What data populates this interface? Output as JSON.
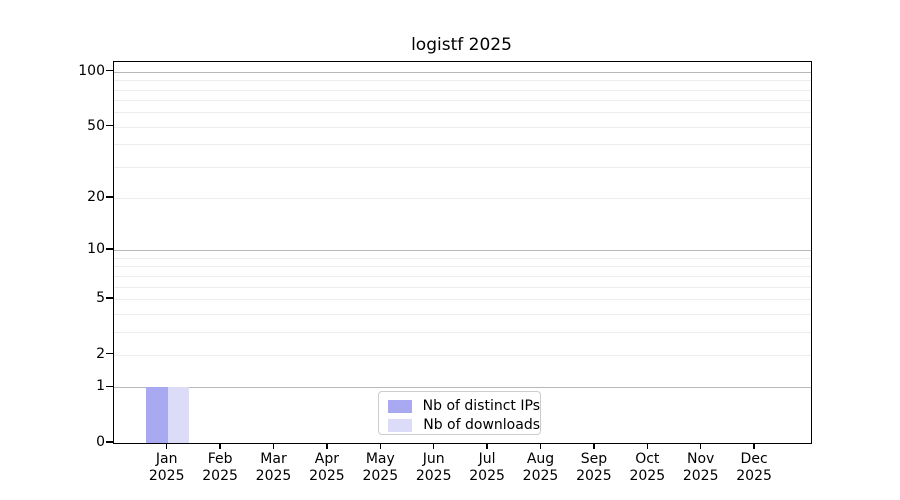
{
  "title": "logistf 2025",
  "colors": {
    "distinct_ips_bar": "#a9a9f2",
    "downloads_bar": "#dcdcf8",
    "grid_major": "#b8b8b8",
    "grid_minor": "#ececec",
    "spine": "#000000",
    "legend_border": "#cccccc",
    "background": "#ffffff"
  },
  "legend": {
    "items": [
      {
        "label": "Nb of distinct IPs",
        "color_key": "distinct_ips_bar"
      },
      {
        "label": "Nb of downloads",
        "color_key": "downloads_bar"
      }
    ]
  },
  "chart_data": {
    "type": "bar",
    "title": "logistf 2025",
    "categories": [
      "Jan 2025",
      "Feb 2025",
      "Mar 2025",
      "Apr 2025",
      "May 2025",
      "Jun 2025",
      "Jul 2025",
      "Aug 2025",
      "Sep 2025",
      "Oct 2025",
      "Nov 2025",
      "Dec 2025"
    ],
    "x_tick_months": [
      "Jan",
      "Feb",
      "Mar",
      "Apr",
      "May",
      "Jun",
      "Jul",
      "Aug",
      "Sep",
      "Oct",
      "Nov",
      "Dec"
    ],
    "x_tick_year": "2025",
    "series": [
      {
        "name": "Nb of distinct IPs",
        "color": "#a9a9f2",
        "values": [
          1,
          0,
          0,
          0,
          0,
          0,
          0,
          0,
          0,
          0,
          0,
          0
        ]
      },
      {
        "name": "Nb of downloads",
        "color": "#dcdcf8",
        "values": [
          1,
          0,
          0,
          0,
          0,
          0,
          0,
          0,
          0,
          0,
          0,
          0
        ]
      }
    ],
    "xlabel": "",
    "ylabel": "",
    "y_scale": "log1p",
    "y_ticks_labeled": [
      0,
      1,
      2,
      5,
      10,
      20,
      50,
      100
    ],
    "y_gridlines_major": [
      1,
      10,
      100
    ],
    "y_gridlines_minor": [
      2,
      3,
      4,
      5,
      6,
      7,
      8,
      9,
      20,
      30,
      40,
      50,
      60,
      70,
      80,
      90
    ],
    "ylim": [
      0,
      113
    ],
    "grid": true,
    "legend_position": "lower center"
  }
}
